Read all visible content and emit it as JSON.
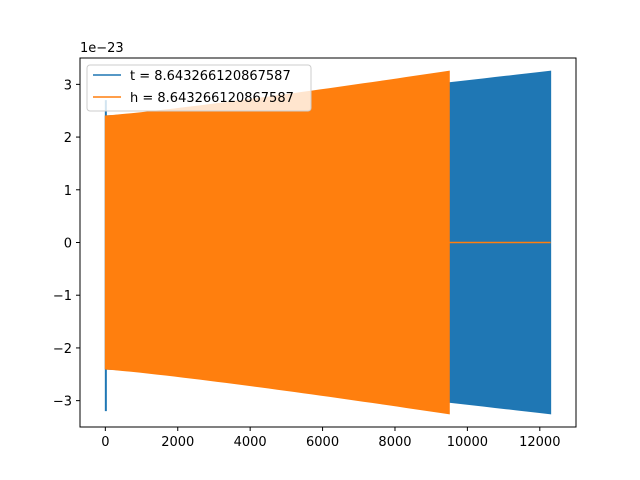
{
  "chart_data": {
    "type": "line",
    "title": "",
    "xlabel": "",
    "ylabel": "",
    "y_offset_label": "1e−23",
    "xlim": [
      -700,
      13000
    ],
    "ylim": [
      -3.5,
      3.5
    ],
    "x_ticks": [
      0,
      2000,
      4000,
      6000,
      8000,
      10000,
      12000
    ],
    "x_tick_labels": [
      "0",
      "2000",
      "4000",
      "6000",
      "8000",
      "10000",
      "12000"
    ],
    "y_ticks": [
      -3,
      -2,
      -1,
      0,
      1,
      2,
      3
    ],
    "y_tick_labels": [
      "−3",
      "−2",
      "−1",
      "0",
      "1",
      "2",
      "3"
    ],
    "grid": false,
    "legend_placement": "top-left",
    "series": [
      {
        "name": "t = 8.643266120867587",
        "color": "#1f77b4",
        "x_start": 0,
        "x_end": 12300,
        "initial_spike": [
          -3.2,
          2.7
        ],
        "envelope_start": 2.4,
        "envelope_end": 3.25
      },
      {
        "name": "h = 8.643266120867587",
        "color": "#ff7f0e",
        "x_start": 0,
        "x_end": 9500,
        "tail_value_after_end": 0,
        "tail_end": 12300,
        "envelope_start": 2.4,
        "envelope_end": 3.25
      }
    ]
  }
}
